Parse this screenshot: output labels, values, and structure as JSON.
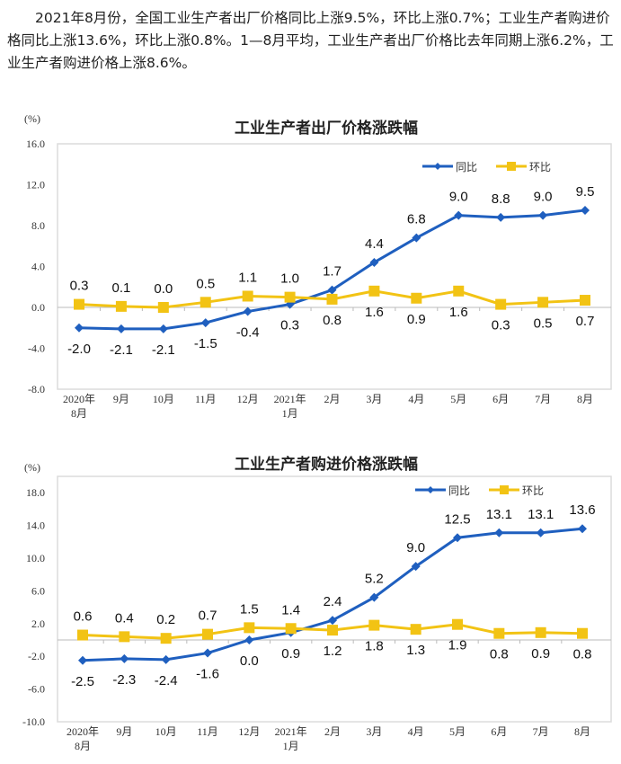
{
  "intro_text": "2021年8月份，全国工业生产者出厂价格同比上涨9.5%，环比上涨0.7%；工业生产者购进价格同比上涨13.6%，环比上涨0.8%。1—8月平均，工业生产者出厂价格比去年同期上涨6.2%，工业生产者购进价格上涨8.6%。",
  "chart_data": [
    {
      "type": "line",
      "title": "工业生产者出厂价格涨跌幅",
      "ylabel": "(%)",
      "ylim": [
        -8,
        16
      ],
      "yticks": [
        "16.0",
        "12.0",
        "8.0",
        "4.0",
        "0.0",
        "-4.0",
        "-8.0"
      ],
      "categories": [
        [
          "2020年",
          "8月"
        ],
        [
          "9月"
        ],
        [
          "10月"
        ],
        [
          "11月"
        ],
        [
          "12月"
        ],
        [
          "2021年",
          "1月"
        ],
        [
          "2月"
        ],
        [
          "3月"
        ],
        [
          "4月"
        ],
        [
          "5月"
        ],
        [
          "6月"
        ],
        [
          "7月"
        ],
        [
          "8月"
        ]
      ],
      "series": [
        {
          "name": "同比",
          "color": "#1f5fbf",
          "marker": "diamond",
          "values": [
            -2.0,
            -2.1,
            -2.1,
            -1.5,
            -0.4,
            0.3,
            1.7,
            4.4,
            6.8,
            9.0,
            8.8,
            9.0,
            9.5
          ],
          "labels": [
            "-2.0",
            "-2.1",
            "-2.1",
            "-1.5",
            "-0.4",
            "0.3",
            "1.7",
            "4.4",
            "6.8",
            "9.0",
            "8.8",
            "9.0",
            "9.5"
          ]
        },
        {
          "name": "环比",
          "color": "#f2c314",
          "marker": "square",
          "values": [
            0.3,
            0.1,
            0.0,
            0.5,
            1.1,
            1.0,
            0.8,
            1.6,
            0.9,
            1.6,
            0.3,
            0.5,
            0.7
          ],
          "labels": [
            "0.3",
            "0.1",
            "0.0",
            "0.5",
            "1.1",
            "1.0",
            "0.8",
            "1.6",
            "0.9",
            "1.6",
            "0.3",
            "0.5",
            "0.7"
          ]
        }
      ],
      "legend": "top-right",
      "grid": false
    },
    {
      "type": "line",
      "title": "工业生产者购进价格涨跌幅",
      "ylabel": "(%)",
      "ylim": [
        -10,
        20
      ],
      "yticks": [
        "18.0",
        "14.0",
        "10.0",
        "6.0",
        "2.0",
        "-2.0",
        "-6.0",
        "-10.0"
      ],
      "categories": [
        [
          "2020年",
          "8月"
        ],
        [
          "9月"
        ],
        [
          "10月"
        ],
        [
          "11月"
        ],
        [
          "12月"
        ],
        [
          "2021年",
          "1月"
        ],
        [
          "2月"
        ],
        [
          "3月"
        ],
        [
          "4月"
        ],
        [
          "5月"
        ],
        [
          "6月"
        ],
        [
          "7月"
        ],
        [
          "8月"
        ]
      ],
      "series": [
        {
          "name": "同比",
          "color": "#1f5fbf",
          "marker": "diamond",
          "values": [
            -2.5,
            -2.3,
            -2.4,
            -1.6,
            0.0,
            0.9,
            2.4,
            5.2,
            9.0,
            12.5,
            13.1,
            13.1,
            13.6
          ],
          "labels": [
            "-2.5",
            "-2.3",
            "-2.4",
            "-1.6",
            "0.0",
            "0.9",
            "2.4",
            "5.2",
            "9.0",
            "12.5",
            "13.1",
            "13.1",
            "13.6"
          ]
        },
        {
          "name": "环比",
          "color": "#f2c314",
          "marker": "square",
          "values": [
            0.6,
            0.4,
            0.2,
            0.7,
            1.5,
            1.4,
            1.2,
            1.8,
            1.3,
            1.9,
            0.8,
            0.9,
            0.8
          ],
          "labels": [
            "0.6",
            "0.4",
            "0.2",
            "0.7",
            "1.5",
            "1.4",
            "1.2",
            "1.8",
            "1.3",
            "1.9",
            "0.8",
            "0.9",
            "0.8"
          ]
        }
      ],
      "legend": "top-right",
      "grid": false
    }
  ]
}
